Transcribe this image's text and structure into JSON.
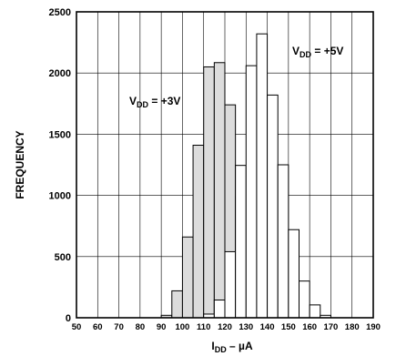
{
  "chart_data": {
    "type": "bar",
    "title": "",
    "xlabel": {
      "main": "I",
      "sub": "DD",
      "suffix": " – µA"
    },
    "ylabel": "FREQUENCY",
    "xlim": [
      50,
      190
    ],
    "ylim": [
      0,
      2500
    ],
    "x_ticks": [
      50,
      60,
      70,
      80,
      90,
      100,
      110,
      120,
      130,
      140,
      150,
      160,
      170,
      180,
      190
    ],
    "y_ticks": [
      0,
      500,
      1000,
      1500,
      2000,
      2500
    ],
    "grid": true,
    "bin_width": 5,
    "series": [
      {
        "fill": "#dcdcdc",
        "annotation": {
          "main": "V",
          "sub": "DD",
          "suffix": " = +3V"
        },
        "bins": [
          {
            "x": 90,
            "value": 20
          },
          {
            "x": 95,
            "value": 220
          },
          {
            "x": 100,
            "value": 660
          },
          {
            "x": 105,
            "value": 1410
          },
          {
            "x": 110,
            "value": 2050
          },
          {
            "x": 115,
            "value": 2085
          },
          {
            "x": 120,
            "value": 1740
          },
          {
            "x": 125,
            "value": 990
          },
          {
            "x": 130,
            "value": 370
          }
        ]
      },
      {
        "fill": "#ffffff",
        "annotation": {
          "main": "V",
          "sub": "DD",
          "suffix": " = +5V"
        },
        "bins": [
          {
            "x": 110,
            "value": 30
          },
          {
            "x": 115,
            "value": 145
          },
          {
            "x": 120,
            "value": 540
          },
          {
            "x": 125,
            "value": 1245
          },
          {
            "x": 130,
            "value": 2060
          },
          {
            "x": 135,
            "value": 2320
          },
          {
            "x": 140,
            "value": 1820
          },
          {
            "x": 145,
            "value": 1250
          },
          {
            "x": 150,
            "value": 720
          },
          {
            "x": 155,
            "value": 300
          },
          {
            "x": 160,
            "value": 105
          },
          {
            "x": 165,
            "value": 20
          }
        ]
      }
    ]
  }
}
